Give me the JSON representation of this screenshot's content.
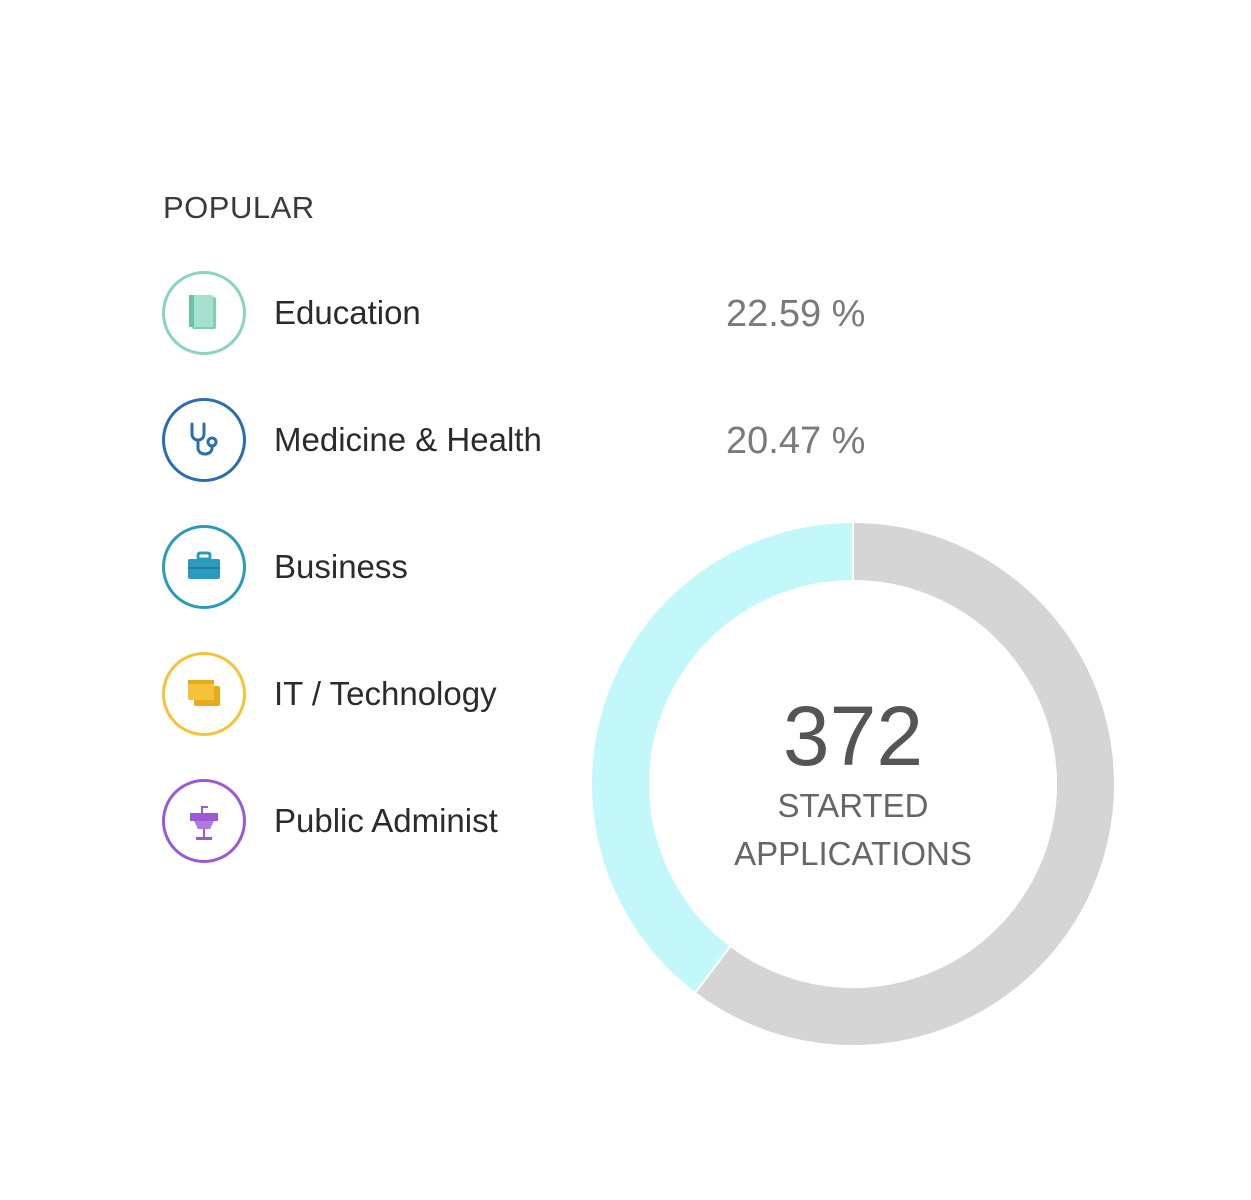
{
  "popular": {
    "title": "POPULAR",
    "categories": [
      {
        "label": "Education",
        "percent": "22.59 %",
        "icon": "book-icon",
        "color": "#79cfb8"
      },
      {
        "label": "Medicine & Health",
        "percent": "20.47 %",
        "icon": "stethoscope-icon",
        "color": "#2b6eaf"
      },
      {
        "label": "Business",
        "percent": "",
        "icon": "briefcase-icon",
        "color": "#2a9bbf"
      },
      {
        "label": "IT / Technology",
        "percent": "",
        "icon": "windows-icon",
        "color": "#f6c23a"
      },
      {
        "label": "Public Administ",
        "percent": "",
        "icon": "podium-icon",
        "color": "#9b59d6"
      }
    ]
  },
  "summary": {
    "count": "372",
    "caption_line1": "STARTED",
    "caption_line2": "APPLICATIONS"
  },
  "chart_data": {
    "type": "pie",
    "segments": [
      {
        "value": 0.397,
        "color": "#c2f8fa"
      },
      {
        "value": 0.603,
        "color": "#d5d5d5"
      }
    ]
  }
}
